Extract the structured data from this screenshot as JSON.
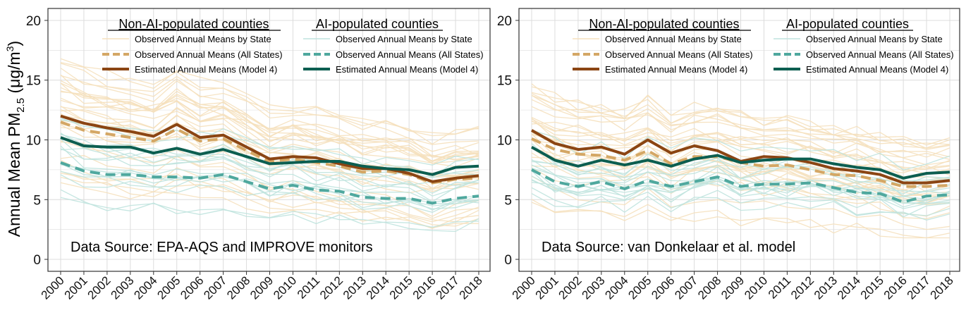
{
  "figure": {
    "ylabel_main": "Annual Mean PM",
    "ylabel_sub": "2.5",
    "ylabel_units_open": " (μg/m",
    "ylabel_units_sup": "3",
    "ylabel_units_close": ")"
  },
  "legend": {
    "group_non_ai": "Non-AI-populated counties",
    "group_ai": "AI-populated counties",
    "entries": [
      "Observed Annual Means by State",
      "Observed Annual Means (All States)",
      "Estimated Annual Means (Model 4)"
    ]
  },
  "colors": {
    "non_ai_state": "#f5e0bd",
    "non_ai_all": "#d4a765",
    "non_ai_model": "#8b4513",
    "ai_state": "#bfe3de",
    "ai_all": "#4fa89e",
    "ai_model": "#0c5e50",
    "grid": "#dcdcdc",
    "frame": "#333333"
  },
  "chart_data": [
    {
      "type": "line",
      "source_label": "Data Source: EPA-AQS and IMPROVE monitors",
      "x": [
        2000,
        2001,
        2002,
        2003,
        2004,
        2005,
        2006,
        2007,
        2008,
        2009,
        2010,
        2011,
        2012,
        2013,
        2014,
        2015,
        2016,
        2017,
        2018
      ],
      "ylim": [
        -1,
        21
      ],
      "yticks": [
        0,
        5,
        10,
        15,
        20
      ],
      "grid": true,
      "series": [
        {
          "group": "non_ai",
          "style": "all_states",
          "values": [
            11.5,
            10.8,
            10.5,
            10.2,
            9.9,
            10.9,
            9.9,
            10.1,
            9.1,
            8.2,
            8.4,
            8.1,
            7.8,
            7.3,
            7.4,
            7.1,
            6.4,
            6.7,
            6.8
          ]
        },
        {
          "group": "non_ai",
          "style": "model",
          "values": [
            12.0,
            11.4,
            11.0,
            10.7,
            10.3,
            11.3,
            10.2,
            10.4,
            9.4,
            8.4,
            8.6,
            8.5,
            8.0,
            7.6,
            7.6,
            7.2,
            6.5,
            6.8,
            7.0
          ]
        },
        {
          "group": "ai",
          "style": "all_states",
          "values": [
            8.1,
            7.4,
            7.1,
            7.1,
            6.9,
            6.9,
            6.8,
            7.1,
            6.5,
            5.9,
            6.2,
            5.8,
            5.7,
            5.2,
            5.1,
            5.1,
            4.7,
            5.1,
            5.3
          ]
        },
        {
          "group": "ai",
          "style": "model",
          "values": [
            10.2,
            9.5,
            9.4,
            9.4,
            8.9,
            9.3,
            8.8,
            9.2,
            8.6,
            8.0,
            8.1,
            8.2,
            8.2,
            7.8,
            7.6,
            7.5,
            7.1,
            7.7,
            7.8
          ]
        }
      ]
    },
    {
      "type": "line",
      "source_label": "Data Source: van Donkelaar et al. model",
      "x": [
        2000,
        2001,
        2002,
        2003,
        2004,
        2005,
        2006,
        2007,
        2008,
        2009,
        2010,
        2011,
        2012,
        2013,
        2014,
        2015,
        2016,
        2017,
        2018
      ],
      "ylim": [
        -1,
        21
      ],
      "yticks": [
        0,
        5,
        10,
        15,
        20
      ],
      "grid": true,
      "series": [
        {
          "group": "non_ai",
          "style": "all_states",
          "values": [
            10.1,
            9.2,
            8.8,
            8.7,
            8.3,
            9.1,
            8.0,
            8.6,
            8.6,
            8.1,
            7.8,
            7.9,
            7.5,
            7.1,
            7.0,
            6.6,
            6.1,
            6.1,
            6.2
          ]
        },
        {
          "group": "non_ai",
          "style": "model",
          "values": [
            10.8,
            9.7,
            9.2,
            9.4,
            8.8,
            10.0,
            8.9,
            9.5,
            9.1,
            8.2,
            8.6,
            8.5,
            8.1,
            7.6,
            7.4,
            7.1,
            6.4,
            6.4,
            6.6
          ]
        },
        {
          "group": "ai",
          "style": "all_states",
          "values": [
            7.5,
            6.5,
            6.1,
            6.5,
            5.9,
            6.6,
            6.1,
            6.5,
            6.9,
            6.1,
            6.3,
            6.3,
            6.4,
            6.0,
            5.6,
            5.5,
            4.8,
            5.3,
            5.4
          ]
        },
        {
          "group": "ai",
          "style": "model",
          "values": [
            9.4,
            8.3,
            7.8,
            8.3,
            7.9,
            8.3,
            7.8,
            8.4,
            8.7,
            8.1,
            8.3,
            8.4,
            8.4,
            8.0,
            7.7,
            7.5,
            6.8,
            7.2,
            7.3
          ]
        }
      ]
    }
  ]
}
